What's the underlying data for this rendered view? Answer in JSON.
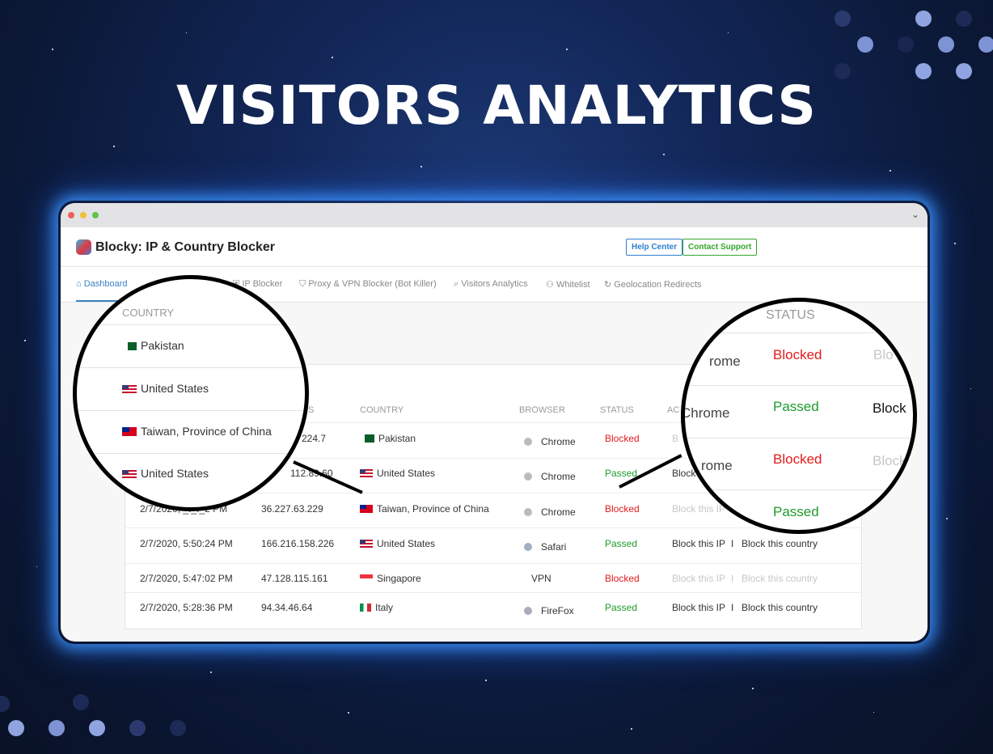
{
  "hero": {
    "title": "VISITORS ANALYTICS"
  },
  "app": {
    "title": "Blocky: IP & Country Blocker",
    "help_center": "Help Center",
    "contact_support": "Contact Support"
  },
  "nav": {
    "items": [
      {
        "label": "Dashboard",
        "icon": "home-icon"
      },
      {
        "label": "IP Blocker",
        "icon": "ip-icon"
      },
      {
        "label": "Proxy & VPN Blocker (Bot Killer)",
        "icon": "shield-icon"
      },
      {
        "label": "Visitors Analytics",
        "icon": "search-icon"
      },
      {
        "label": "Whitelist",
        "icon": "user-check-icon"
      },
      {
        "label": "Geolocation Redirects",
        "icon": "refresh-icon"
      }
    ]
  },
  "table": {
    "headers": {
      "ip": "S",
      "country": "COUNTRY",
      "browser": "BROWSER",
      "status": "STATUS",
      "actions": "AC"
    },
    "rows": [
      {
        "date": "",
        "ip": "224.7",
        "country": "Pakistan",
        "browser": "Chrome",
        "status": "Blocked",
        "block_ip": "B",
        "block_country": ""
      },
      {
        "date": "",
        "ip": "112.89.60",
        "country": "United States",
        "browser": "Chrome",
        "status": "Passed",
        "block_ip": "Block",
        "block_country": ""
      },
      {
        "date": "2/7/2020, _:_:_2 PM",
        "ip": "36.227.63.229",
        "country": "Taiwan, Province of China",
        "browser": "Chrome",
        "status": "Blocked",
        "block_ip": "Block this IP",
        "block_country": ""
      },
      {
        "date": "2/7/2020, 5:50:24 PM",
        "ip": "166.216.158.226",
        "country": "United States",
        "browser": "Safari",
        "status": "Passed",
        "block_ip": "Block this IP",
        "block_country": "Block this country"
      },
      {
        "date": "2/7/2020, 5:47:02 PM",
        "ip": "47.128.115.161",
        "country": "Singapore",
        "browser": "VPN",
        "status": "Blocked",
        "block_ip": "Block this IP",
        "block_country": "Block this country"
      },
      {
        "date": "2/7/2020, 5:28:36 PM",
        "ip": "94.34.46.64",
        "country": "Italy",
        "browser": "FireFox",
        "status": "Passed",
        "block_ip": "Block this IP",
        "block_country": "Block this country"
      }
    ],
    "separator": "I"
  },
  "zoom_left": {
    "header": "COUNTRY",
    "items": [
      "Pakistan",
      "United States",
      "Taiwan, Province of China",
      "United States"
    ]
  },
  "zoom_right": {
    "header": "STATUS",
    "rows": [
      {
        "browser": "rome",
        "status": "Blocked",
        "action": "Blo"
      },
      {
        "browser": "Chrome",
        "status": "Passed",
        "action": "Block"
      },
      {
        "browser": "rome",
        "status": "Blocked",
        "action": "Block"
      },
      {
        "browser": "",
        "status": "Passed",
        "action": ""
      }
    ]
  },
  "colors": {
    "blocked": "#e21b1b",
    "passed": "#1e9a2c",
    "accent": "#3b82c4",
    "glow": "#3c96ff"
  }
}
